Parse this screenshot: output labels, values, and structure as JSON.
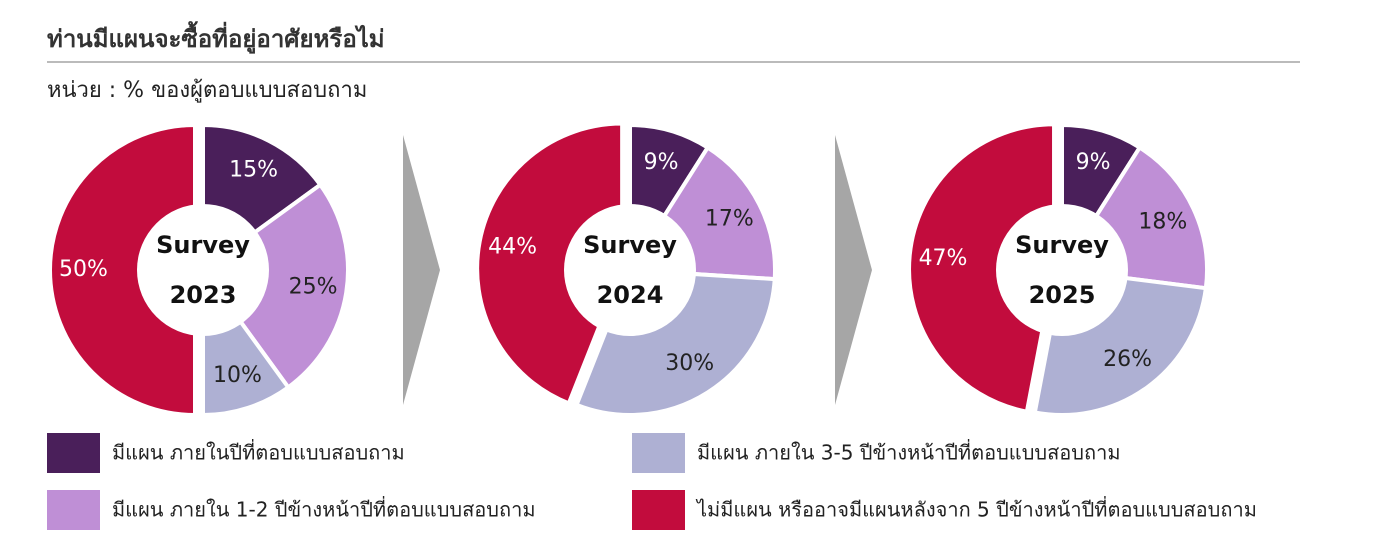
{
  "title": "ท่านมีแผนจะซื้อที่อยู่อาศัยหรือไม่",
  "subtitle": "หน่วย : % ของผู้ตอบแบบสอบถาม",
  "legend": {
    "labels": [
      "มีแผน ภายในปีที่ตอบแบบสอบถาม",
      "มีแผน ภายใน 1-2 ปีข้างหน้าปีที่ตอบแบบสอบถาม",
      "มีแผน ภายใน 3-5 ปีข้างหน้าปีที่ตอบแบบสอบถาม",
      "ไม่มีแผน หรืออาจมีแผนหลังจาก 5 ปีข้างหน้าปีที่ตอบแบบสอบถาม"
    ],
    "colors": [
      "#4a1f5a",
      "#bf8fd6",
      "#aeb0d3",
      "#c20c3d"
    ]
  },
  "chart_data": [
    {
      "type": "pie",
      "center_label": [
        "Survey",
        "2023"
      ],
      "values": [
        15,
        25,
        10,
        50
      ],
      "value_labels": [
        "15%",
        "25%",
        "10%",
        "50%"
      ]
    },
    {
      "type": "pie",
      "center_label": [
        "Survey",
        "2024"
      ],
      "values": [
        9,
        17,
        30,
        44
      ],
      "value_labels": [
        "9%",
        "17%",
        "30%",
        "44%"
      ]
    },
    {
      "type": "pie",
      "center_label": [
        "Survey",
        "2025"
      ],
      "values": [
        9,
        18,
        26,
        47
      ],
      "value_labels": [
        "9%",
        "18%",
        "26%",
        "47%"
      ]
    }
  ]
}
